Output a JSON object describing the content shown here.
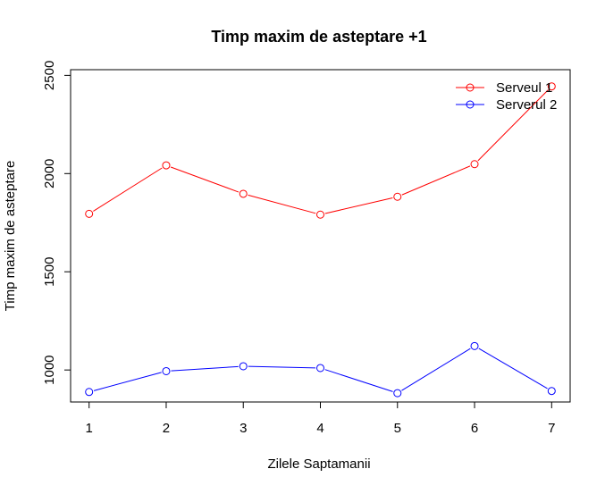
{
  "chart_data": {
    "type": "line",
    "title": "Timp maxim de asteptare +1",
    "xlabel": "Zilele Saptamanii",
    "ylabel": "Timp maxim de asteptare",
    "x": [
      1,
      2,
      3,
      4,
      5,
      6,
      7
    ],
    "x_ticks": [
      "1",
      "2",
      "3",
      "4",
      "5",
      "6",
      "7"
    ],
    "y_ticks": [
      "1000",
      "1500",
      "2000",
      "2500"
    ],
    "y_tick_values": [
      1000,
      1500,
      2000,
      2500
    ],
    "xlim": [
      0.76,
      7.24
    ],
    "ylim": [
      837,
      2529
    ],
    "legend_position": "top-right",
    "series": [
      {
        "name": "Serveul 1",
        "color": "#ff0000",
        "values": [
          1795,
          2042,
          1897,
          1791,
          1882,
          2048,
          2444
        ]
      },
      {
        "name": "Serverul 2",
        "color": "#0000ff",
        "values": [
          888,
          994,
          1019,
          1010,
          882,
          1122,
          893
        ]
      }
    ]
  }
}
